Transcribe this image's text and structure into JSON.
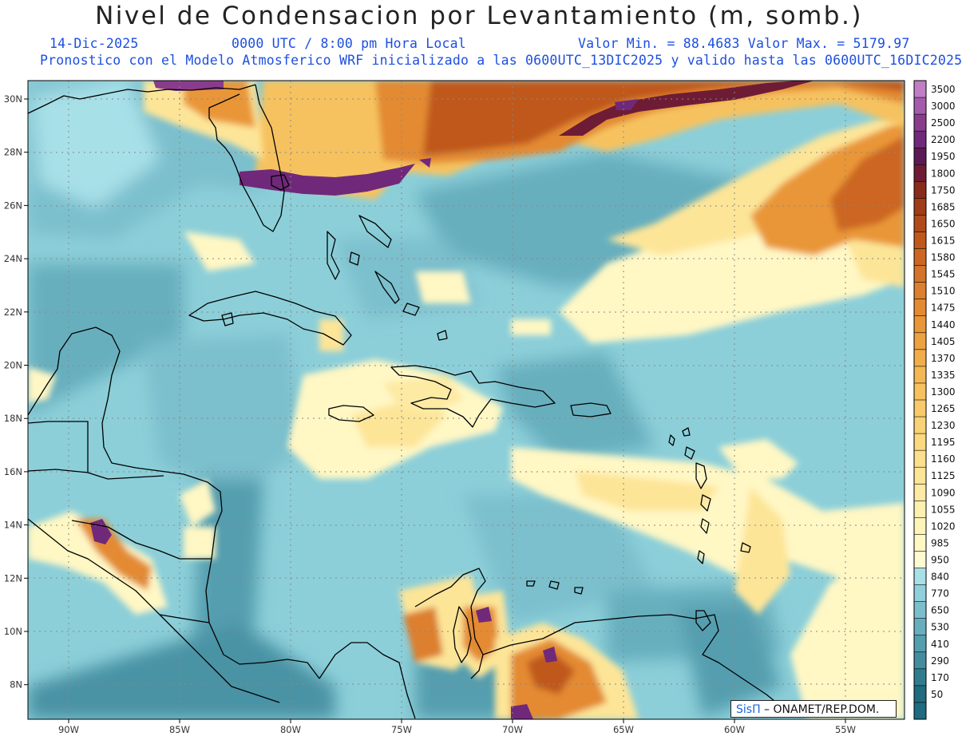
{
  "header": {
    "title": "Nivel de Condensacion por Levantamiento (m, somb.)",
    "date": "14-Dic-2025",
    "time": "0000 UTC / 8:00 pm Hora Local",
    "minmax": "Valor Min. = 88.4683  Valor Max. = 5179.97",
    "model_line": "Pronostico con el Modelo Atmosferico WRF inicializado a las 0600UTC_13DIC2025 y valido hasta las  0600UTC_16DIC2025"
  },
  "lat_labels": [
    "30N",
    "28N",
    "26N",
    "24N",
    "22N",
    "20N",
    "18N",
    "16N",
    "14N",
    "12N",
    "10N",
    "8N"
  ],
  "lon_labels": [
    "90W",
    "85W",
    "80W",
    "75W",
    "70W",
    "65W",
    "60W",
    "55W"
  ],
  "colorbar": {
    "levels": [
      "3500",
      "3000",
      "2500",
      "2200",
      "1950",
      "1800",
      "1750",
      "1685",
      "1650",
      "1615",
      "1580",
      "1545",
      "1510",
      "1475",
      "1440",
      "1405",
      "1370",
      "1335",
      "1300",
      "1265",
      "1230",
      "1195",
      "1160",
      "1125",
      "1090",
      "1055",
      "1020",
      "985",
      "950",
      "840",
      "770",
      "650",
      "530",
      "410",
      "290",
      "170",
      "50"
    ],
    "colors": [
      "#c27ec4",
      "#a45bab",
      "#8a3c8c",
      "#70297a",
      "#5c1a55",
      "#6e1c35",
      "#8a2a1a",
      "#a03c16",
      "#b04a1a",
      "#c0581e",
      "#cc6622",
      "#d47428",
      "#dc7f2e",
      "#e38a33",
      "#e99638",
      "#eda240",
      "#f0ad4a",
      "#f3b854",
      "#f6c25f",
      "#f8ca6b",
      "#fad276",
      "#fbd981",
      "#fcdf8d",
      "#fde598",
      "#fdeaa3",
      "#fdefae",
      "#fef3b9",
      "#fff7c4",
      "#fffbd0",
      "#a8e0e8",
      "#8fd0dc",
      "#7bbfcd",
      "#68afbe",
      "#559eaf",
      "#438d9f",
      "#307c8f",
      "#1f6b7f"
    ]
  },
  "credit": {
    "brand": "SisΠ",
    "text": " – ONAMET/REP.DOM."
  }
}
